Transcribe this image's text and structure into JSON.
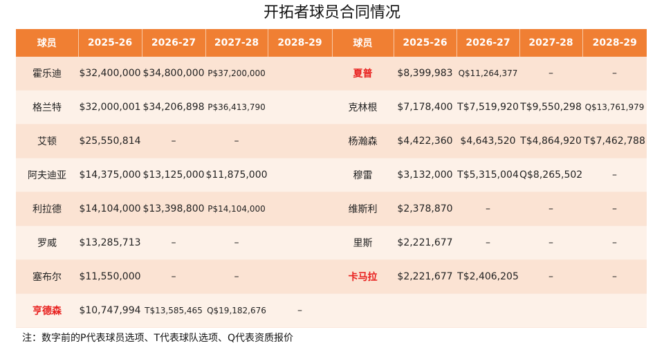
{
  "title": "开拓者球员合同情况",
  "headers": [
    "球员",
    "2025-26",
    "2026-27",
    "2027-28",
    "2028-29",
    "球员",
    "2025-26",
    "2026-27",
    "2027-28",
    "2028-29"
  ],
  "rows": [
    {
      "left": {
        "name": "霍乐迪",
        "highlight": false,
        "values": [
          "$32,400,000",
          "$34,800,000",
          "P$37,200,000",
          ""
        ]
      },
      "right": {
        "name": "夏普",
        "highlight": true,
        "values": [
          "$8,399,983",
          "Q$11,264,377",
          "–",
          "–"
        ]
      }
    },
    {
      "left": {
        "name": "格兰特",
        "highlight": false,
        "values": [
          "$32,000,001",
          "$34,206,898",
          "P$36,413,790",
          ""
        ]
      },
      "right": {
        "name": "克林根",
        "highlight": false,
        "values": [
          "$7,178,400",
          "T$7,519,920",
          "T$9,550,298",
          "Q$13,761,979"
        ]
      }
    },
    {
      "left": {
        "name": "艾顿",
        "highlight": false,
        "values": [
          "$25,550,814",
          "–",
          "–",
          ""
        ]
      },
      "right": {
        "name": "杨瀚森",
        "highlight": false,
        "values": [
          "$4,422,360",
          "$4,643,520",
          "T$4,864,920",
          "T$7,462,788"
        ]
      }
    },
    {
      "left": {
        "name": "阿夫迪亚",
        "highlight": false,
        "values": [
          "$14,375,000",
          "$13,125,000",
          "$11,875,000",
          ""
        ]
      },
      "right": {
        "name": "穆雷",
        "highlight": false,
        "values": [
          "$3,132,000",
          "T$5,315,004",
          "Q$8,265,502",
          "–"
        ]
      }
    },
    {
      "left": {
        "name": "利拉德",
        "highlight": false,
        "values": [
          "$14,104,000",
          "$13,398,800",
          "P$14,104,000",
          ""
        ]
      },
      "right": {
        "name": "维斯利",
        "highlight": false,
        "values": [
          "$2,378,870",
          "–",
          "–",
          "–"
        ]
      }
    },
    {
      "left": {
        "name": "罗威",
        "highlight": false,
        "values": [
          "$13,285,713",
          "–",
          "–",
          ""
        ]
      },
      "right": {
        "name": "里斯",
        "highlight": false,
        "values": [
          "$2,221,677",
          "–",
          "–",
          "–"
        ]
      }
    },
    {
      "left": {
        "name": "塞布尔",
        "highlight": false,
        "values": [
          "$11,550,000",
          "–",
          "–",
          ""
        ]
      },
      "right": {
        "name": "卡马拉",
        "highlight": true,
        "values": [
          "$2,221,677",
          "T$2,406,205",
          "–",
          "–"
        ]
      }
    },
    {
      "left": {
        "name": "亨德森",
        "highlight": true,
        "values": [
          "$10,747,994",
          "T$13,585,465",
          "Q$19,182,676",
          "–"
        ]
      },
      "right": {
        "name": "",
        "highlight": false,
        "values": [
          "",
          "",
          "",
          ""
        ]
      }
    }
  ],
  "note": "注：数字前的P代表球员选项、T代表球队选项、Q代表资质报价",
  "colors": {
    "header_bg": "#f07f33",
    "row_odd": "#fbe3d3",
    "row_even": "#fdf1e8",
    "highlight_name": "#e8201e"
  }
}
